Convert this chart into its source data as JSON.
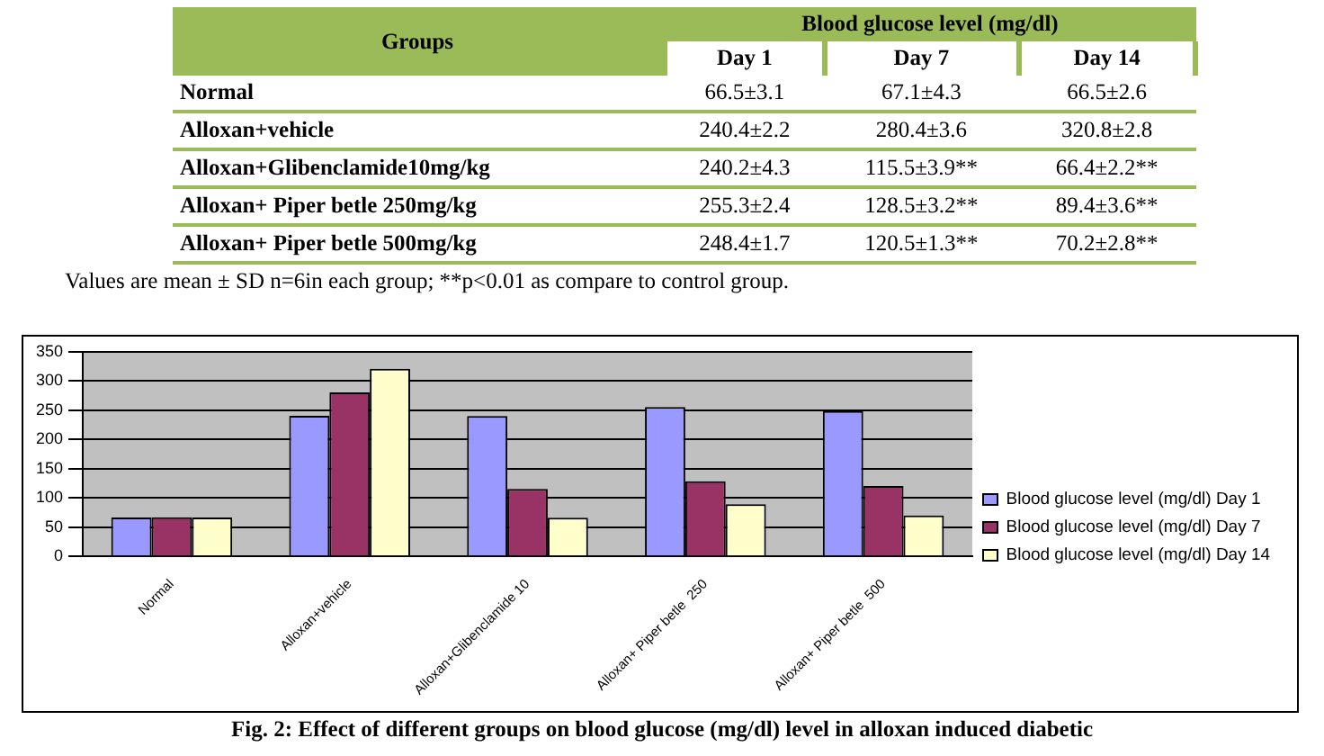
{
  "chart_data": [
    {
      "type": "other",
      "annotations": [
        "Groups",
        "Blood glucose level (mg/dl)",
        "Day 1",
        "Day 7",
        "Day 14",
        "Normal",
        "66.5±3.1",
        "67.1±4.3",
        "66.5±2.6",
        "Alloxan+vehicle",
        "240.4±2.2",
        "280.4±3.6",
        "320.8±2.8",
        "Alloxan+Glibenclamide10mg/kg",
        "240.2±4.3",
        "115.5±3.9**",
        "66.4±2.2**",
        "Alloxan+ Piper betle  250mg/kg",
        "255.3±2.4",
        "128.5±3.2**",
        "89.4±3.6**",
        "Alloxan+ Piper betle  500mg/kg",
        "248.4±1.7",
        "120.5±1.3**",
        "70.2±2.8**",
        "Values are mean ± SD n=6in each group; **p<0.01 as compare to control group."
      ]
    },
    {
      "type": "bar",
      "categories": [
        "Normal",
        "Alloxan+vehicle",
        "Alloxan+Glibenclamide 10",
        "Alloxan+ Piper betle  250",
        "Alloxan+ Piper betle  500"
      ],
      "series": [
        {
          "name": "Blood glucose level (mg/dl) Day 1",
          "color": "#9999ff",
          "values": [
            66.5,
            240.4,
            240.2,
            255.3,
            248.4
          ]
        },
        {
          "name": "Blood glucose level (mg/dl) Day 7",
          "color": "#993366",
          "values": [
            67.1,
            280.4,
            115.5,
            128.5,
            120.5
          ]
        },
        {
          "name": "Blood glucose level (mg/dl) Day 14",
          "color": "#ffffcc",
          "values": [
            66.5,
            320.8,
            66.4,
            89.4,
            70.2
          ]
        }
      ],
      "ylim": [
        0,
        350
      ],
      "yticks": [
        0,
        50,
        100,
        150,
        200,
        250,
        300,
        350
      ],
      "grid": "y",
      "legend": "right",
      "annotations": [
        "Fig. 2: Effect of different groups on blood glucose (mg/dl) level in alloxan induced diabetic"
      ]
    }
  ]
}
